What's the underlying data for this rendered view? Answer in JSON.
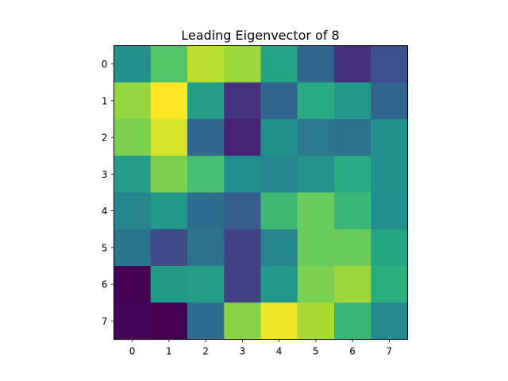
{
  "chart_data": {
    "type": "heatmap",
    "title": "Leading Eigenvector of 8",
    "xlabel": "",
    "ylabel": "",
    "x_ticks": [
      "0",
      "1",
      "2",
      "3",
      "4",
      "5",
      "6",
      "7"
    ],
    "y_ticks": [
      "0",
      "1",
      "2",
      "3",
      "4",
      "5",
      "6",
      "7"
    ],
    "colormap": "viridis",
    "value_range": [
      0,
      1
    ],
    "grid": false,
    "legend": "none",
    "values": [
      [
        0.5,
        0.73,
        0.9,
        0.85,
        0.58,
        0.33,
        0.14,
        0.25
      ],
      [
        0.84,
        1.0,
        0.56,
        0.15,
        0.33,
        0.62,
        0.53,
        0.33
      ],
      [
        0.8,
        0.94,
        0.34,
        0.1,
        0.5,
        0.4,
        0.38,
        0.5
      ],
      [
        0.55,
        0.8,
        0.7,
        0.49,
        0.45,
        0.51,
        0.62,
        0.5
      ],
      [
        0.45,
        0.53,
        0.36,
        0.3,
        0.68,
        0.77,
        0.67,
        0.49
      ],
      [
        0.39,
        0.23,
        0.38,
        0.2,
        0.45,
        0.77,
        0.77,
        0.6
      ],
      [
        0.0,
        0.54,
        0.55,
        0.2,
        0.53,
        0.8,
        0.85,
        0.63
      ],
      [
        0.01,
        0.0,
        0.36,
        0.82,
        0.98,
        0.87,
        0.67,
        0.47
      ]
    ]
  }
}
